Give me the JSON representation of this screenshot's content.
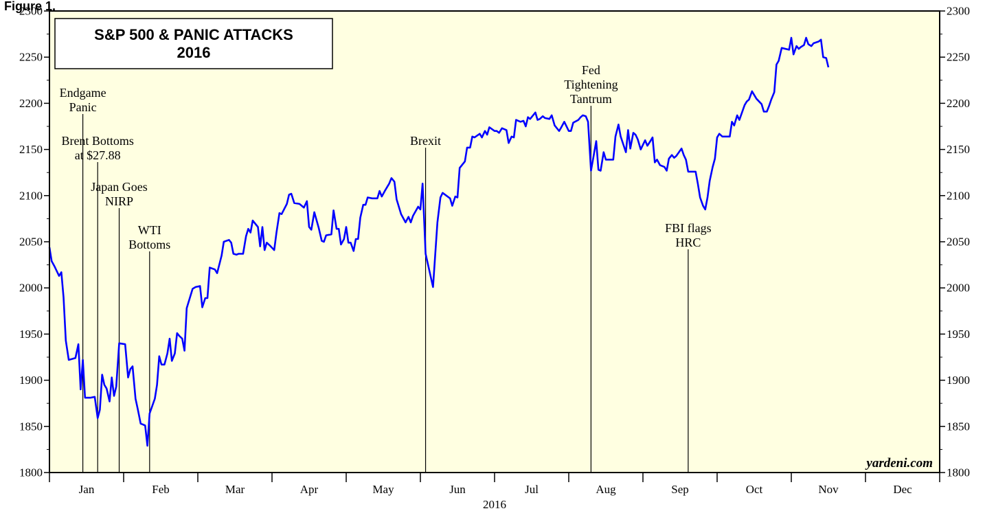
{
  "figure_label": "Figure 1.",
  "chart_data": {
    "type": "line",
    "title": "S&P 500 & PANIC ATTACKS",
    "subtitle": "2016",
    "xlabel": "2016",
    "ylabel": "",
    "ylim": [
      1800,
      2300
    ],
    "y_ticks": [
      1800,
      1850,
      1900,
      1950,
      2000,
      2050,
      2100,
      2150,
      2200,
      2250,
      2300
    ],
    "grid": false,
    "months": [
      "Jan",
      "Feb",
      "Mar",
      "Apr",
      "May",
      "Jun",
      "Jul",
      "Aug",
      "Sep",
      "Oct",
      "Nov",
      "Dec"
    ],
    "line_color": "#0000ff",
    "background_color": "#ffffe1",
    "source": "yardeni.com",
    "x_units": "months since 2016-01-01",
    "series": [
      {
        "name": "",
        "points": [
          [
            0.0,
            2044
          ],
          [
            0.03,
            2029
          ],
          [
            0.07,
            2023
          ],
          [
            0.1,
            2018
          ],
          [
            0.13,
            2013
          ],
          [
            0.16,
            2017
          ],
          [
            0.19,
            1990
          ],
          [
            0.22,
            1943
          ],
          [
            0.26,
            1922
          ],
          [
            0.35,
            1924
          ],
          [
            0.39,
            1939
          ],
          [
            0.42,
            1890
          ],
          [
            0.45,
            1922
          ],
          [
            0.48,
            1881
          ],
          [
            0.55,
            1881
          ],
          [
            0.61,
            1882
          ],
          [
            0.65,
            1859
          ],
          [
            0.68,
            1868
          ],
          [
            0.71,
            1906
          ],
          [
            0.74,
            1895
          ],
          [
            0.77,
            1891
          ],
          [
            0.81,
            1877
          ],
          [
            0.84,
            1903
          ],
          [
            0.87,
            1883
          ],
          [
            0.9,
            1893
          ],
          [
            0.94,
            1940
          ],
          [
            1.02,
            1939
          ],
          [
            1.06,
            1903
          ],
          [
            1.09,
            1912
          ],
          [
            1.12,
            1915
          ],
          [
            1.16,
            1880
          ],
          [
            1.19,
            1869
          ],
          [
            1.23,
            1853
          ],
          [
            1.26,
            1852
          ],
          [
            1.29,
            1851
          ],
          [
            1.32,
            1829
          ],
          [
            1.35,
            1864
          ],
          [
            1.42,
            1880
          ],
          [
            1.45,
            1895
          ],
          [
            1.48,
            1926
          ],
          [
            1.51,
            1917
          ],
          [
            1.55,
            1917
          ],
          [
            1.59,
            1929
          ],
          [
            1.62,
            1945
          ],
          [
            1.65,
            1921
          ],
          [
            1.69,
            1929
          ],
          [
            1.72,
            1951
          ],
          [
            1.75,
            1948
          ],
          [
            1.79,
            1945
          ],
          [
            1.82,
            1932
          ],
          [
            1.85,
            1978
          ],
          [
            1.93,
            1999
          ],
          [
            1.97,
            2001
          ],
          [
            2.03,
            2002
          ],
          [
            2.06,
            1979
          ],
          [
            2.1,
            1989
          ],
          [
            2.13,
            1989
          ],
          [
            2.16,
            2022
          ],
          [
            2.23,
            2020
          ],
          [
            2.26,
            2016
          ],
          [
            2.32,
            2035
          ],
          [
            2.35,
            2050
          ],
          [
            2.42,
            2052
          ],
          [
            2.45,
            2049
          ],
          [
            2.48,
            2037
          ],
          [
            2.52,
            2036
          ],
          [
            2.55,
            2037
          ],
          [
            2.61,
            2037
          ],
          [
            2.65,
            2056
          ],
          [
            2.68,
            2064
          ],
          [
            2.71,
            2060
          ],
          [
            2.74,
            2073
          ],
          [
            2.81,
            2066
          ],
          [
            2.84,
            2045
          ],
          [
            2.87,
            2066
          ],
          [
            2.9,
            2041
          ],
          [
            2.93,
            2049
          ],
          [
            2.97,
            2046
          ],
          [
            3.03,
            2041
          ],
          [
            3.06,
            2060
          ],
          [
            3.1,
            2081
          ],
          [
            3.13,
            2080
          ],
          [
            3.2,
            2091
          ],
          [
            3.23,
            2101
          ],
          [
            3.26,
            2102
          ],
          [
            3.3,
            2092
          ],
          [
            3.37,
            2091
          ],
          [
            3.43,
            2087
          ],
          [
            3.47,
            2094
          ],
          [
            3.5,
            2066
          ],
          [
            3.53,
            2063
          ],
          [
            3.57,
            2082
          ],
          [
            3.63,
            2065
          ],
          [
            3.67,
            2051
          ],
          [
            3.7,
            2050
          ],
          [
            3.73,
            2057
          ],
          [
            3.8,
            2058
          ],
          [
            3.83,
            2084
          ],
          [
            3.87,
            2064
          ],
          [
            3.9,
            2064
          ],
          [
            3.93,
            2047
          ],
          [
            3.97,
            2053
          ],
          [
            4.0,
            2066
          ],
          [
            4.03,
            2049
          ],
          [
            4.06,
            2049
          ],
          [
            4.1,
            2040
          ],
          [
            4.13,
            2053
          ],
          [
            4.16,
            2053
          ],
          [
            4.19,
            2076
          ],
          [
            4.23,
            2090
          ],
          [
            4.26,
            2090
          ],
          [
            4.29,
            2098
          ],
          [
            4.35,
            2097
          ],
          [
            4.42,
            2097
          ],
          [
            4.45,
            2105
          ],
          [
            4.48,
            2099
          ],
          [
            4.52,
            2105
          ],
          [
            4.58,
            2113
          ],
          [
            4.61,
            2119
          ],
          [
            4.65,
            2115
          ],
          [
            4.68,
            2096
          ],
          [
            4.74,
            2080
          ],
          [
            4.8,
            2071
          ],
          [
            4.84,
            2077
          ],
          [
            4.87,
            2071
          ],
          [
            4.9,
            2078
          ],
          [
            4.97,
            2088
          ],
          [
            5.0,
            2085
          ],
          [
            5.03,
            2113
          ],
          [
            5.07,
            2037
          ],
          [
            5.17,
            2001
          ],
          [
            5.23,
            2071
          ],
          [
            5.27,
            2098
          ],
          [
            5.3,
            2103
          ],
          [
            5.4,
            2097
          ],
          [
            5.43,
            2089
          ],
          [
            5.47,
            2099
          ],
          [
            5.5,
            2098
          ],
          [
            5.53,
            2130
          ],
          [
            5.6,
            2137
          ],
          [
            5.63,
            2152
          ],
          [
            5.67,
            2152
          ],
          [
            5.7,
            2164
          ],
          [
            5.73,
            2163
          ],
          [
            5.8,
            2167
          ],
          [
            5.83,
            2163
          ],
          [
            5.87,
            2170
          ],
          [
            5.9,
            2166
          ],
          [
            5.93,
            2174
          ],
          [
            6.0,
            2170
          ],
          [
            6.03,
            2170
          ],
          [
            6.06,
            2168
          ],
          [
            6.1,
            2173
          ],
          [
            6.16,
            2171
          ],
          [
            6.19,
            2157
          ],
          [
            6.23,
            2164
          ],
          [
            6.26,
            2163
          ],
          [
            6.29,
            2182
          ],
          [
            6.35,
            2180
          ],
          [
            6.39,
            2181
          ],
          [
            6.42,
            2175
          ],
          [
            6.45,
            2185
          ],
          [
            6.48,
            2183
          ],
          [
            6.55,
            2190
          ],
          [
            6.58,
            2182
          ],
          [
            6.61,
            2183
          ],
          [
            6.65,
            2186
          ],
          [
            6.68,
            2184
          ],
          [
            6.74,
            2183
          ],
          [
            6.77,
            2187
          ],
          [
            6.81,
            2176
          ],
          [
            6.87,
            2170
          ],
          [
            6.9,
            2174
          ],
          [
            6.94,
            2180
          ],
          [
            7.0,
            2170
          ],
          [
            7.03,
            2170
          ],
          [
            7.06,
            2179
          ],
          [
            7.13,
            2182
          ],
          [
            7.16,
            2185
          ],
          [
            7.19,
            2187
          ],
          [
            7.23,
            2186
          ],
          [
            7.26,
            2180
          ],
          [
            7.3,
            2127
          ],
          [
            7.37,
            2159
          ],
          [
            7.4,
            2128
          ],
          [
            7.43,
            2127
          ],
          [
            7.47,
            2147
          ],
          [
            7.5,
            2139
          ],
          [
            7.53,
            2139
          ],
          [
            7.6,
            2139
          ],
          [
            7.63,
            2164
          ],
          [
            7.67,
            2177
          ],
          [
            7.7,
            2164
          ],
          [
            7.77,
            2147
          ],
          [
            7.8,
            2171
          ],
          [
            7.83,
            2151
          ],
          [
            7.87,
            2168
          ],
          [
            7.9,
            2166
          ],
          [
            7.93,
            2161
          ],
          [
            7.97,
            2150
          ],
          [
            8.03,
            2160
          ],
          [
            8.06,
            2154
          ],
          [
            8.1,
            2159
          ],
          [
            8.13,
            2163
          ],
          [
            8.16,
            2136
          ],
          [
            8.19,
            2139
          ],
          [
            8.23,
            2133
          ],
          [
            8.29,
            2131
          ],
          [
            8.32,
            2127
          ],
          [
            8.35,
            2140
          ],
          [
            8.39,
            2144
          ],
          [
            8.42,
            2141
          ],
          [
            8.45,
            2143
          ],
          [
            8.52,
            2151
          ],
          [
            8.55,
            2144
          ],
          [
            8.58,
            2139
          ],
          [
            8.61,
            2126
          ],
          [
            8.71,
            2126
          ],
          [
            8.74,
            2113
          ],
          [
            8.77,
            2098
          ],
          [
            8.81,
            2089
          ],
          [
            8.84,
            2085
          ],
          [
            8.87,
            2098
          ],
          [
            8.9,
            2116
          ],
          [
            8.94,
            2131
          ],
          [
            8.97,
            2140
          ],
          [
            9.0,
            2163
          ],
          [
            9.03,
            2167
          ],
          [
            9.07,
            2164
          ],
          [
            9.1,
            2164
          ],
          [
            9.17,
            2164
          ],
          [
            9.2,
            2180
          ],
          [
            9.23,
            2176
          ],
          [
            9.27,
            2187
          ],
          [
            9.3,
            2182
          ],
          [
            9.37,
            2198
          ],
          [
            9.4,
            2202
          ],
          [
            9.43,
            2204
          ],
          [
            9.47,
            2213
          ],
          [
            9.53,
            2205
          ],
          [
            9.6,
            2199
          ],
          [
            9.63,
            2191
          ],
          [
            9.67,
            2191
          ],
          [
            9.7,
            2197
          ],
          [
            9.73,
            2204
          ],
          [
            9.77,
            2212
          ],
          [
            9.8,
            2242
          ],
          [
            9.83,
            2246
          ],
          [
            9.87,
            2260
          ],
          [
            9.97,
            2258
          ],
          [
            10.0,
            2271
          ],
          [
            10.03,
            2253
          ],
          [
            10.07,
            2262
          ],
          [
            10.1,
            2259
          ],
          [
            10.13,
            2261
          ],
          [
            10.17,
            2263
          ],
          [
            10.2,
            2271
          ],
          [
            10.23,
            2264
          ],
          [
            10.27,
            2262
          ],
          [
            10.3,
            2265
          ],
          [
            10.37,
            2267
          ],
          [
            10.4,
            2269
          ],
          [
            10.43,
            2250
          ],
          [
            10.47,
            2249
          ],
          [
            10.5,
            2239
          ]
        ]
      }
    ],
    "events": [
      {
        "lines": [
          "Endgame",
          "Panic"
        ],
        "x": 0.45
      },
      {
        "lines": [
          "Brent Bottoms",
          "at $27.88"
        ],
        "x": 0.65
      },
      {
        "lines": [
          "Japan Goes",
          "NIRP"
        ],
        "x": 0.94
      },
      {
        "lines": [
          "WTI",
          "Bottoms"
        ],
        "x": 1.35
      },
      {
        "lines": [
          "Brexit"
        ],
        "x": 5.07
      },
      {
        "lines": [
          "Fed",
          "Tightening",
          "Tantrum"
        ],
        "x": 7.3
      },
      {
        "lines": [
          "FBI flags",
          "HRC"
        ],
        "x": 8.61
      }
    ]
  }
}
